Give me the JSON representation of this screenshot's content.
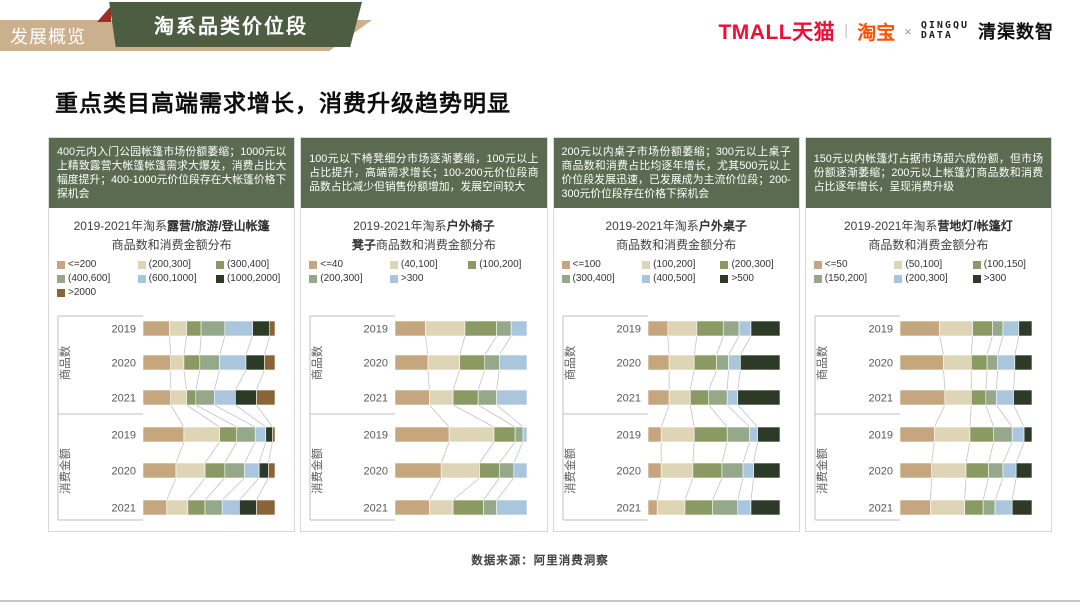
{
  "header": {
    "breadcrumb": "发展概览",
    "banner": "淘系品类价位段",
    "logos": {
      "tmall": "TMALL天猫",
      "sep": "|",
      "taobao": "淘宝",
      "times": "×",
      "qingqu_line1": "QINGQU",
      "qingqu_line2": "DATA",
      "qingqu_name": "清渠数智"
    }
  },
  "title": "重点类目高端需求增长，消费升级趋势明显",
  "footer": {
    "source": "数据来源：阿里消费洞察"
  },
  "colors": {
    "ribbon_tan": "#cbb08e",
    "ribbon_green": "#4c5d42",
    "ribbon_fold_red": "#9c2f24",
    "summary_green": "#5a6b51",
    "tmall_red": "#ef0c35",
    "taobao_orange": "#ff5000",
    "connector_gray": "#c3c3c3",
    "axis_gray": "#bfbfbf",
    "label_gray": "#595959"
  },
  "chart_data": [
    {
      "type": "bar",
      "stacked": true,
      "orientation": "horizontal",
      "unit": "%",
      "summary": "400元内入门公园帐篷市场份额萎缩；1000元以上精致露营大帐篷帐篷需求大爆发，消费占比大幅度提升；400-1000元价位段存在大帐篷价格下探机会",
      "title_lines": [
        [
          {
            "t": "2019-2021年淘系"
          },
          {
            "t": "露营/旅游/登山帐篷",
            "b": true
          }
        ],
        [
          {
            "t": "商品数和消费金额分布"
          }
        ]
      ],
      "legend": [
        "<=200",
        "(200,300]",
        "(300,400]",
        "(400,600]",
        "(600,1000]",
        "(1000,2000]",
        ">2000"
      ],
      "palette": [
        "#c5a67e",
        "#ddd5b6",
        "#8a9a62",
        "#95a889",
        "#a9c6dd",
        "#2d3a27",
        "#8a6436"
      ],
      "groups": [
        {
          "label": "商品数",
          "rows": [
            {
              "year": "2019",
              "values": [
                20,
                13,
                11,
                18,
                21,
                13,
                4
              ]
            },
            {
              "year": "2020",
              "values": [
                21,
                10,
                12,
                15,
                20,
                14,
                8
              ]
            },
            {
              "year": "2021",
              "values": [
                21,
                12,
                7,
                14,
                16,
                16,
                14
              ]
            }
          ]
        },
        {
          "label": "消费金额",
          "rows": [
            {
              "year": "2019",
              "values": [
                31,
                27,
                13,
                14,
                8,
                5,
                2
              ]
            },
            {
              "year": "2020",
              "values": [
                25,
                22,
                15,
                15,
                11,
                7,
                5
              ]
            },
            {
              "year": "2021",
              "values": [
                18,
                16,
                13,
                13,
                13,
                13,
                14
              ]
            }
          ]
        }
      ]
    },
    {
      "type": "bar",
      "stacked": true,
      "orientation": "horizontal",
      "unit": "%",
      "summary": "100元以下椅凳细分市场逐渐萎缩，100元以上占比提升，高端需求增长；100-200元价位段商品数占比减少但销售份额增加，发展空间较大",
      "title_lines": [
        [
          {
            "t": "2019-2021年淘系"
          },
          {
            "t": "户外椅子",
            "b": true
          }
        ],
        [
          {
            "t": "凳子",
            "b": true
          },
          {
            "t": "商品数和消费金额分布"
          }
        ]
      ],
      "legend": [
        "<=40",
        "(40,100]",
        "(100,200]",
        "(200,300]",
        ">300"
      ],
      "palette": [
        "#c5a67e",
        "#ddd5b6",
        "#8a9a62",
        "#95a889",
        "#a9c6dd"
      ],
      "groups": [
        {
          "label": "商品数",
          "rows": [
            {
              "year": "2019",
              "values": [
                23,
                30,
                24,
                11,
                12
              ]
            },
            {
              "year": "2020",
              "values": [
                25,
                24,
                19,
                11,
                21
              ]
            },
            {
              "year": "2021",
              "values": [
                26,
                18,
                19,
                14,
                23
              ]
            }
          ]
        },
        {
          "label": "消费金额",
          "rows": [
            {
              "year": "2019",
              "values": [
                41,
                34,
                16,
                6,
                3
              ]
            },
            {
              "year": "2020",
              "values": [
                35,
                29,
                15,
                11,
                10
              ]
            },
            {
              "year": "2021",
              "values": [
                26,
                18,
                23,
                10,
                23
              ]
            }
          ]
        }
      ]
    },
    {
      "type": "bar",
      "stacked": true,
      "orientation": "horizontal",
      "unit": "%",
      "summary": "200元以内桌子市场份额萎缩；300元以上桌子商品数和消费占比均逐年增长，尤其500元以上价位段发展迅速，已发展成为主流价位段；200-300元价位段存在价格下探机会",
      "title_lines": [
        [
          {
            "t": "2019-2021年淘系"
          },
          {
            "t": "户外桌子",
            "b": true
          }
        ],
        [
          {
            "t": "商品数和消费金额分布"
          }
        ]
      ],
      "legend": [
        "<=100",
        "(100,200]",
        "(200,300]",
        "(300,400]",
        "(400,500]",
        ">500"
      ],
      "palette": [
        "#c5a67e",
        "#ddd5b6",
        "#8a9a62",
        "#95a889",
        "#a9c6dd",
        "#2d3a27"
      ],
      "groups": [
        {
          "label": "商品数",
          "rows": [
            {
              "year": "2019",
              "values": [
                15,
                22,
                20,
                12,
                9,
                22
              ]
            },
            {
              "year": "2020",
              "values": [
                16,
                19,
                17,
                9,
                9,
                30
              ]
            },
            {
              "year": "2021",
              "values": [
                16,
                16,
                14,
                14,
                8,
                32
              ]
            }
          ]
        },
        {
          "label": "消费金额",
          "rows": [
            {
              "year": "2019",
              "values": [
                10,
                25,
                25,
                17,
                6,
                17
              ]
            },
            {
              "year": "2020",
              "values": [
                10,
                24,
                22,
                16,
                8,
                20
              ]
            },
            {
              "year": "2021",
              "values": [
                7,
                21,
                21,
                19,
                10,
                22
              ]
            }
          ]
        }
      ]
    },
    {
      "type": "bar",
      "stacked": true,
      "orientation": "horizontal",
      "unit": "%",
      "summary": "150元以内帐篷灯占据市场超六成份额，但市场份额逐渐萎缩；200元以上帐篷灯商品数和消费占比逐年增长，呈现消费升级",
      "title_lines": [
        [
          {
            "t": "2019-2021年淘系"
          },
          {
            "t": "营地灯/帐篷灯",
            "b": true
          }
        ],
        [
          {
            "t": "商品数和消费金额分布"
          }
        ]
      ],
      "legend": [
        "<=50",
        "(50,100]",
        "(100,150]",
        "(150,200]",
        "(200,300]",
        ">300"
      ],
      "palette": [
        "#c5a67e",
        "#ddd5b6",
        "#8a9a62",
        "#95a889",
        "#a9c6dd",
        "#2d3a27"
      ],
      "groups": [
        {
          "label": "商品数",
          "rows": [
            {
              "year": "2019",
              "values": [
                30,
                25,
                15,
                8,
                12,
                10
              ]
            },
            {
              "year": "2020",
              "values": [
                33,
                21,
                12,
                8,
                13,
                13
              ]
            },
            {
              "year": "2021",
              "values": [
                34,
                20,
                11,
                8,
                13,
                14
              ]
            }
          ]
        },
        {
          "label": "消费金额",
          "rows": [
            {
              "year": "2019",
              "values": [
                26,
                27,
                18,
                14,
                9,
                6
              ]
            },
            {
              "year": "2020",
              "values": [
                24,
                26,
                17,
                11,
                10,
                12
              ]
            },
            {
              "year": "2021",
              "values": [
                23,
                26,
                14,
                9,
                13,
                15
              ]
            }
          ]
        }
      ]
    }
  ]
}
